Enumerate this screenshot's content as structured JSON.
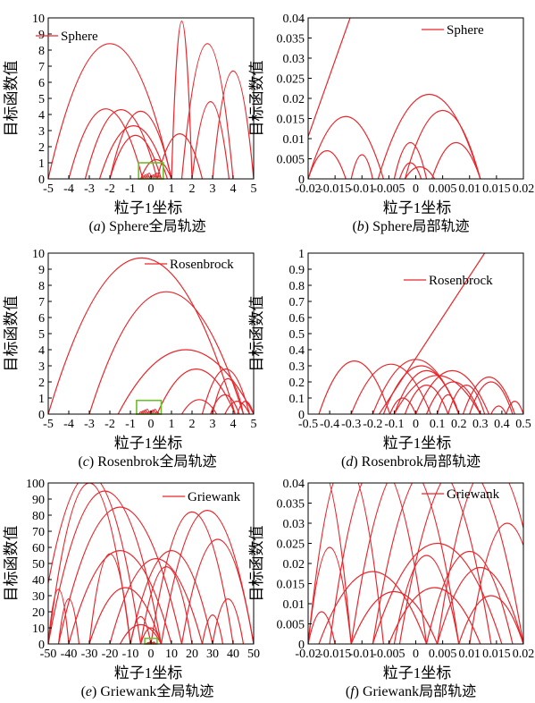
{
  "chart_data": [
    {
      "id": "a",
      "type": "line",
      "xlabel": "粒子1坐标",
      "ylabel": "目标函数值",
      "xlim": [
        -5,
        5
      ],
      "ylim": [
        0,
        10
      ],
      "xticks": [
        "-5",
        "-4",
        "-3",
        "-2",
        "-1",
        "0",
        "1",
        "2",
        "3",
        "4",
        "5"
      ],
      "yticks": [
        "0",
        "1",
        "2",
        "3",
        "4",
        "5",
        "6",
        "7",
        "8",
        "9",
        "10"
      ],
      "legend": "Sphere",
      "legend_position": "top-left",
      "caption_letter": "a",
      "caption_text": "Sphere全局轨迹",
      "arcs": [
        [
          -5.0,
          1.0,
          8.4
        ],
        [
          1.0,
          2.0,
          9.8
        ],
        [
          -2.0,
          1.0,
          4.2
        ],
        [
          -4.0,
          -0.4,
          4.35
        ],
        [
          -3.2,
          0.3,
          4.3
        ],
        [
          -2.5,
          0.8,
          3.3
        ],
        [
          -2.0,
          0.5,
          2.7
        ],
        [
          -0.5,
          1.0,
          1.2
        ],
        [
          0.3,
          2.5,
          2.8
        ],
        [
          1.5,
          4.0,
          8.4
        ],
        [
          2.0,
          3.8,
          4.8
        ],
        [
          3.0,
          5.0,
          6.7
        ]
      ],
      "highlight": {
        "x": [
          -0.6,
          0.6
        ],
        "y": [
          0,
          1.0
        ]
      }
    },
    {
      "id": "b",
      "type": "line",
      "xlabel": "粒子1坐标",
      "ylabel": "目标函数值",
      "xlim": [
        -0.02,
        0.02
      ],
      "ylim": [
        0,
        0.04
      ],
      "xticks": [
        "-0.02",
        "-0.015",
        "-0.01",
        "-0.005",
        "0",
        "0.005",
        "0.01",
        "0.015",
        "0.02"
      ],
      "yticks": [
        "0",
        "0.005",
        "0.01",
        "0.015",
        "0.02",
        "0.025",
        "0.03",
        "0.035",
        "0.04"
      ],
      "legend": "Sphere",
      "legend_position": "top-right",
      "caption_letter": "b",
      "caption_text": "Sphere局部轨迹",
      "arcs": [
        [
          -0.02,
          -0.013,
          0.007
        ],
        [
          -0.02,
          -0.006,
          0.0155
        ],
        [
          -0.012,
          -0.008,
          0.006
        ],
        [
          -0.007,
          0.012,
          0.021
        ],
        [
          -0.004,
          0.002,
          0.009
        ],
        [
          -0.002,
          0.012,
          0.017
        ],
        [
          -0.003,
          0.001,
          0.004
        ],
        [
          -0.002,
          0.0035,
          0.003
        ],
        [
          0.003,
          0.012,
          0.009
        ]
      ],
      "line": [
        [
          -0.02,
          0.0105
        ],
        [
          -0.0122,
          0.04
        ]
      ]
    },
    {
      "id": "c",
      "type": "line",
      "xlabel": "粒子1坐标",
      "ylabel": "目标函数值",
      "xlim": [
        -5,
        5
      ],
      "ylim": [
        0,
        10
      ],
      "xticks": [
        "-5",
        "-4",
        "-3",
        "-2",
        "-1",
        "0",
        "1",
        "2",
        "3",
        "4",
        "5"
      ],
      "yticks": [
        "0",
        "1",
        "2",
        "3",
        "4",
        "5",
        "6",
        "7",
        "8",
        "9",
        "10"
      ],
      "legend": "Rosenbrock",
      "legend_position": "top-right",
      "caption_letter": "c",
      "caption_text": "Rosenbrok全局轨迹",
      "arcs": [
        [
          -5.0,
          4.1,
          9.7
        ],
        [
          -3.0,
          4.5,
          7.6
        ],
        [
          -1.6,
          5.0,
          4.0
        ],
        [
          0.3,
          4.1,
          2.8
        ],
        [
          2.9,
          4.3,
          1.2
        ],
        [
          2.5,
          4.8,
          2.8
        ],
        [
          3.0,
          4.5,
          2.2
        ],
        [
          1.5,
          3.2,
          0.9
        ],
        [
          3.6,
          4.8,
          0.8
        ],
        [
          4.2,
          5.0,
          0.8
        ]
      ],
      "highlight": {
        "x": [
          -0.7,
          0.5
        ],
        "y": [
          0,
          0.85
        ]
      }
    },
    {
      "id": "d",
      "type": "line",
      "xlabel": "粒子1坐标",
      "ylabel": "目标函数值",
      "xlim": [
        -0.5,
        0.5
      ],
      "ylim": [
        0,
        1
      ],
      "xticks": [
        "-0.5",
        "-0.4",
        "-0.3",
        "-0.2",
        "-0.1",
        "0",
        "0.1",
        "0.2",
        "0.3",
        "0.4",
        "0.5"
      ],
      "yticks": [
        "0",
        "0.1",
        "0.2",
        "0.3",
        "0.4",
        "0.5",
        "0.6",
        "0.7",
        "0.8",
        "0.9",
        "1"
      ],
      "legend": "Rosenbrock",
      "legend_position": "top-right",
      "caption_letter": "d",
      "caption_text": "Rosenbrok局部轨迹",
      "arcs": [
        [
          -0.45,
          -0.12,
          0.33
        ],
        [
          -0.3,
          0.07,
          0.31
        ],
        [
          -0.2,
          0.2,
          0.34
        ],
        [
          -0.15,
          0.2,
          0.3
        ],
        [
          -0.1,
          0.2,
          0.27
        ],
        [
          -0.1,
          0.3,
          0.24
        ],
        [
          0.0,
          0.34,
          0.27
        ],
        [
          0.05,
          0.3,
          0.2
        ],
        [
          -0.05,
          0.15,
          0.18
        ],
        [
          0.1,
          0.2,
          0.12
        ],
        [
          0.15,
          0.32,
          0.18
        ],
        [
          0.22,
          0.46,
          0.23
        ],
        [
          0.25,
          0.45,
          0.2
        ],
        [
          -0.12,
          0.0,
          0.1
        ],
        [
          0.42,
          0.5,
          0.08
        ],
        [
          0.35,
          0.42,
          0.05
        ]
      ],
      "line": [
        [
          -0.17,
          0.0
        ],
        [
          0.32,
          1.0
        ]
      ]
    },
    {
      "id": "e",
      "type": "line",
      "xlabel": "粒子1坐标",
      "ylabel": "目标函数值",
      "xlim": [
        -50,
        50
      ],
      "ylim": [
        0,
        100
      ],
      "xticks": [
        "-50",
        "-40",
        "-30",
        "-20",
        "-10",
        "0",
        "10",
        "20",
        "30",
        "40",
        "50"
      ],
      "yticks": [
        "0",
        "10",
        "20",
        "30",
        "40",
        "50",
        "60",
        "70",
        "80",
        "90",
        "100"
      ],
      "legend": "Griewank",
      "legend_position": "top-right",
      "caption_letter": "e",
      "caption_text": "Griewank全局轨迹",
      "arcs": [
        [
          -55,
          -5,
          105
        ],
        [
          -50,
          -10,
          100
        ],
        [
          -50,
          5,
          95
        ],
        [
          -45,
          15,
          85
        ],
        [
          -40,
          10,
          58
        ],
        [
          -30,
          -10,
          56
        ],
        [
          -20,
          25,
          53
        ],
        [
          -30,
          5,
          35
        ],
        [
          -45,
          -35,
          28
        ],
        [
          -50,
          -40,
          34
        ],
        [
          -10,
          30,
          58
        ],
        [
          -5,
          20,
          48
        ],
        [
          0,
          40,
          82
        ],
        [
          5,
          50,
          83
        ],
        [
          15,
          50,
          65
        ],
        [
          25,
          35,
          18
        ],
        [
          30,
          45,
          28
        ],
        [
          -15,
          5,
          12
        ],
        [
          -10,
          0,
          17
        ],
        [
          -5,
          5,
          10
        ]
      ],
      "highlight": {
        "x": [
          -3,
          3
        ],
        "y": [
          0,
          3.5
        ]
      }
    },
    {
      "id": "f",
      "type": "line",
      "xlabel": "粒子1坐标",
      "ylabel": "目标函数值",
      "xlim": [
        -0.02,
        0.02
      ],
      "ylim": [
        0,
        0.04
      ],
      "xticks": [
        "-0.02",
        "-0.015",
        "-0.01",
        "-0.005",
        "0",
        "0.005",
        "0.01",
        "0.015",
        "0.02"
      ],
      "yticks": [
        "0",
        "0.005",
        "0.01",
        "0.015",
        "0.02",
        "0.025",
        "0.03",
        "0.035",
        "0.04"
      ],
      "legend": "Griewank",
      "legend_position": "top-right",
      "caption_letter": "f",
      "caption_text": "Griewank局部轨迹",
      "arcs": [
        [
          -0.024,
          -0.012,
          0.045
        ],
        [
          -0.02,
          -0.006,
          0.045
        ],
        [
          -0.016,
          0.002,
          0.045
        ],
        [
          -0.012,
          0.008,
          0.045
        ],
        [
          -0.008,
          0.014,
          0.045
        ],
        [
          -0.003,
          0.02,
          0.045
        ],
        [
          0.004,
          0.024,
          0.045
        ],
        [
          -0.02,
          -0.012,
          0.024
        ],
        [
          -0.018,
          0.002,
          0.018
        ],
        [
          -0.012,
          0.004,
          0.013
        ],
        [
          -0.008,
          0.016,
          0.025
        ],
        [
          -0.005,
          0.012,
          0.014
        ],
        [
          0.002,
          0.018,
          0.023
        ],
        [
          0.004,
          0.02,
          0.019
        ],
        [
          0.008,
          0.02,
          0.012
        ],
        [
          -0.02,
          -0.015,
          0.008
        ],
        [
          -0.004,
          0.008,
          0.022
        ],
        [
          0.01,
          0.024,
          0.03
        ]
      ]
    }
  ],
  "colors": {
    "curve": "#e8262b",
    "highlight": "#6cbe2c",
    "axis": "#000000"
  }
}
